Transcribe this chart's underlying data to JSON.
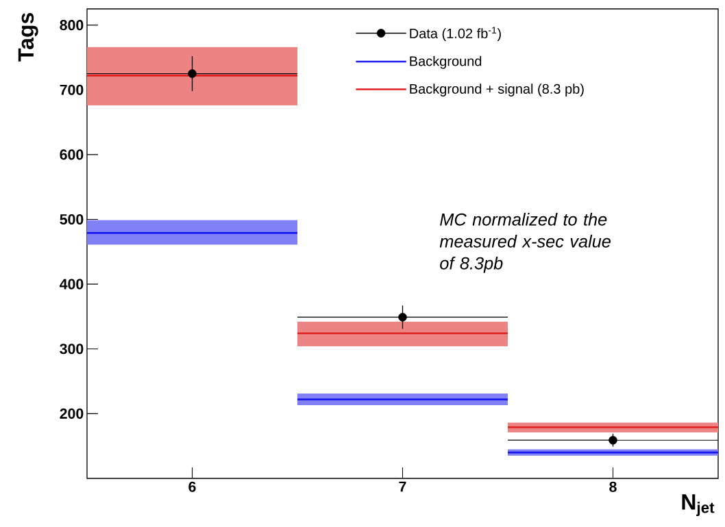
{
  "chart_data": {
    "type": "scatter",
    "xlabel": "N$_{jet}$",
    "ylabel": "Tags",
    "x": [
      6,
      7,
      8
    ],
    "xlim": [
      5.5,
      8.5
    ],
    "xticks": [
      6,
      7,
      8
    ],
    "ylim": [
      100,
      825
    ],
    "yticks": [
      200,
      300,
      400,
      500,
      600,
      700,
      800
    ],
    "series": [
      {
        "name": "Data (1.02 fb$^{-1}$)",
        "color": "#000000",
        "marker": "circle",
        "values": [
          725,
          349,
          159
        ],
        "errors": [
          27,
          18,
          10
        ],
        "xerrors": [
          0.5,
          0.5,
          0.5
        ]
      },
      {
        "name": "Background",
        "type": "step",
        "color": "#1a1aee",
        "x": [
          5.5,
          6.5,
          7.5,
          8.5
        ],
        "values": [
          479,
          222,
          140,
          140
        ],
        "lower": [
          461,
          213,
          135,
          135
        ],
        "upper": [
          499,
          231,
          145,
          145
        ]
      },
      {
        "name": "Background + signal (8.3 pb)",
        "type": "step",
        "color": "#e02020",
        "x": [
          5.5,
          6.5,
          7.5,
          8.5
        ],
        "values": [
          722,
          324,
          179,
          179
        ],
        "lower": [
          676,
          304,
          171,
          171
        ],
        "upper": [
          766,
          342,
          186,
          186
        ]
      }
    ],
    "legend": "top right",
    "annotations": [
      "MC normalized to the measured x-sec value of 8.3pb"
    ]
  }
}
